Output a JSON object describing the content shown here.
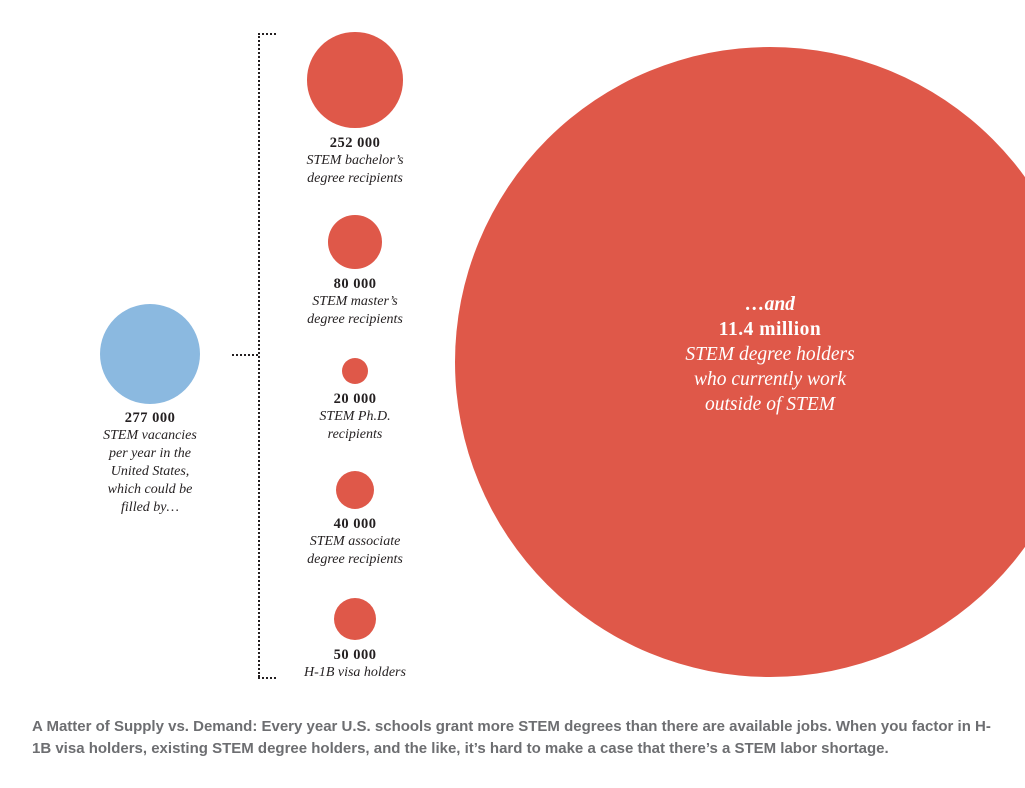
{
  "chart_data": {
    "type": "bubble",
    "title": "",
    "colors": {
      "demand": "#8bb9e0",
      "supply": "#df5849",
      "big_text": "#ffffff",
      "caption": "#6d6e71"
    },
    "demand": {
      "value": 277000,
      "value_label": "277 000",
      "lines": [
        "STEM vacancies",
        "per year in the",
        "United States,",
        "which could be",
        "filled by…"
      ]
    },
    "supply": [
      {
        "value": 252000,
        "value_label": "252 000",
        "lines": [
          "STEM bachelor’s",
          "degree recipients"
        ]
      },
      {
        "value": 80000,
        "value_label": "80 000",
        "lines": [
          "STEM master’s",
          "degree recipients"
        ]
      },
      {
        "value": 20000,
        "value_label": "20 000",
        "lines": [
          "STEM Ph.D.",
          "recipients"
        ]
      },
      {
        "value": 40000,
        "value_label": "40 000",
        "lines": [
          "STEM associate",
          "degree recipients"
        ]
      },
      {
        "value": 50000,
        "value_label": "50 000",
        "lines": [
          "H-1B visa holders"
        ]
      }
    ],
    "outside_stem": {
      "value": 11400000,
      "lead": "…and",
      "value_label": "11.4 million",
      "lines": [
        "STEM degree holders",
        "who currently work",
        "outside of STEM"
      ]
    }
  },
  "caption": {
    "text": "A Matter of Supply vs. Demand: Every year U.S. schools grant more STEM degrees than there are available jobs. When you factor in H-1B visa holders, existing STEM degree holders, and the like, it’s hard to make a case that there’s a STEM labor shortage."
  }
}
